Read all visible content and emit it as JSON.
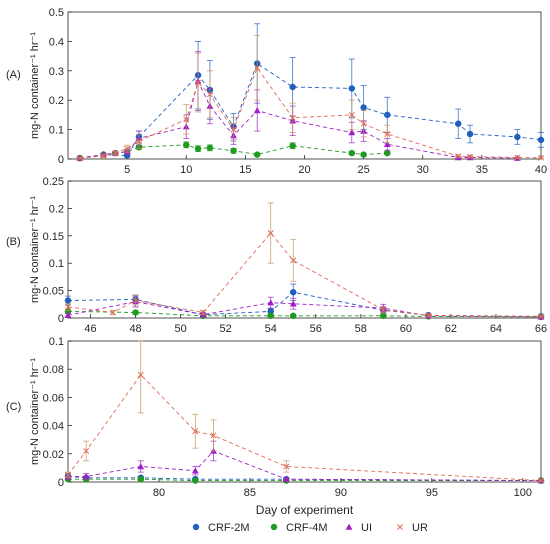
{
  "chart_data": [
    {
      "type": "line",
      "panel_label": "(A)",
      "ylabel": "mg-N container⁻¹ hr⁻¹",
      "xlim": [
        0,
        40
      ],
      "ylim": [
        0,
        0.5
      ],
      "xticks": [
        5,
        10,
        15,
        20,
        25,
        30,
        35,
        40
      ],
      "yticks": [
        0,
        0.1,
        0.2,
        0.3,
        0.4,
        0.5
      ],
      "series": [
        {
          "name": "CRF-2M",
          "x": [
            1,
            3,
            5,
            6,
            11,
            12,
            14,
            16,
            19,
            24,
            25,
            27,
            33,
            34,
            38,
            40
          ],
          "y": [
            0.003,
            0.015,
            0.012,
            0.075,
            0.285,
            0.235,
            0.11,
            0.325,
            0.245,
            0.24,
            0.175,
            0.15,
            0.12,
            0.085,
            0.075,
            0.065
          ],
          "err": [
            0.002,
            0.005,
            0.006,
            0.02,
            0.115,
            0.1,
            0.045,
            0.135,
            0.1,
            0.1,
            0.075,
            0.06,
            0.05,
            0.03,
            0.025,
            0.025
          ]
        },
        {
          "name": "CRF-4M",
          "x": [
            1,
            3,
            4,
            5,
            6,
            10,
            11,
            12,
            14,
            16,
            19,
            24,
            25,
            27
          ],
          "y": [
            0.003,
            0.015,
            0.02,
            0.025,
            0.04,
            0.048,
            0.035,
            0.038,
            0.028,
            0.015,
            0.045,
            0.02,
            0.015,
            0.02
          ],
          "err": [
            0.002,
            0.003,
            0.004,
            0.004,
            0.007,
            0.01,
            0.01,
            0.01,
            0.008,
            0.004,
            0.01,
            0.005,
            0.004,
            0.005
          ]
        },
        {
          "name": "UI",
          "x": [
            1,
            3,
            4,
            5,
            6,
            10,
            11,
            12,
            14,
            16,
            19,
            24,
            25,
            27,
            33,
            34,
            38
          ],
          "y": [
            0.003,
            0.015,
            0.02,
            0.025,
            0.07,
            0.11,
            0.265,
            0.18,
            0.08,
            0.165,
            0.13,
            0.09,
            0.095,
            0.05,
            0.005,
            0.005,
            0.003
          ],
          "err": [
            0.002,
            0.004,
            0.005,
            0.008,
            0.025,
            0.04,
            0.1,
            0.06,
            0.03,
            0.07,
            0.05,
            0.035,
            0.035,
            0.02,
            0.003,
            0.003,
            0.002
          ]
        },
        {
          "name": "UR",
          "x": [
            1,
            3,
            4,
            5,
            6,
            10,
            11,
            12,
            14,
            16,
            19,
            24,
            25,
            27,
            33,
            34,
            38,
            40
          ],
          "y": [
            0.003,
            0.01,
            0.02,
            0.035,
            0.06,
            0.135,
            0.26,
            0.22,
            0.1,
            0.31,
            0.14,
            0.15,
            0.12,
            0.085,
            0.01,
            0.008,
            0.005,
            0.004
          ],
          "err": [
            0.002,
            0.004,
            0.006,
            0.012,
            0.025,
            0.05,
            0.1,
            0.08,
            0.04,
            0.11,
            0.05,
            0.05,
            0.045,
            0.03,
            0.004,
            0.003,
            0.002,
            0.002
          ]
        }
      ]
    },
    {
      "type": "line",
      "panel_label": "(B)",
      "ylabel": "mg-N container⁻¹ hr⁻¹",
      "xlim": [
        45,
        66
      ],
      "ylim": [
        0,
        0.25
      ],
      "xticks": [
        46,
        48,
        50,
        52,
        54,
        56,
        58,
        60,
        62,
        64,
        66
      ],
      "yticks": [
        0,
        0.05,
        0.1,
        0.15,
        0.2,
        0.25
      ],
      "series": [
        {
          "name": "CRF-2M",
          "x": [
            45,
            48,
            51,
            54,
            55,
            59,
            61,
            66
          ],
          "y": [
            0.032,
            0.034,
            0.006,
            0.012,
            0.047,
            0.014,
            0.005,
            0.003
          ],
          "err": [
            0.008,
            0.008,
            0.003,
            0.005,
            0.015,
            0.006,
            0.002,
            0.001
          ]
        },
        {
          "name": "CRF-4M",
          "x": [
            45,
            48,
            51,
            54,
            55,
            59,
            61,
            66
          ],
          "y": [
            0.012,
            0.01,
            0.004,
            0.004,
            0.004,
            0.004,
            0.003,
            0.002
          ],
          "err": [
            0.004,
            0.003,
            0.002,
            0.002,
            0.002,
            0.002,
            0.001,
            0.001
          ]
        },
        {
          "name": "UI",
          "x": [
            45,
            48,
            51,
            54,
            55,
            59,
            61,
            66
          ],
          "y": [
            0.005,
            0.03,
            0.006,
            0.028,
            0.026,
            0.018,
            0.004,
            0.002
          ],
          "err": [
            0.003,
            0.01,
            0.003,
            0.01,
            0.01,
            0.007,
            0.002,
            0.001
          ]
        },
        {
          "name": "UR",
          "x": [
            45,
            47,
            48,
            51,
            54,
            55,
            59,
            61,
            66
          ],
          "y": [
            0.02,
            0.01,
            0.032,
            0.01,
            0.155,
            0.105,
            0.015,
            0.005,
            0.003
          ],
          "err": [
            0.006,
            0.004,
            0.01,
            0.004,
            0.055,
            0.038,
            0.006,
            0.002,
            0.001
          ]
        }
      ]
    },
    {
      "type": "line",
      "panel_label": "(C)",
      "ylabel": "mg-N container⁻¹ hr⁻¹",
      "xlabel": "Day of experiment",
      "xlim": [
        75,
        101
      ],
      "ylim": [
        0,
        0.1
      ],
      "xticks": [
        80,
        85,
        90,
        95,
        100
      ],
      "yticks": [
        0,
        0.02,
        0.04,
        0.06,
        0.08,
        0.1
      ],
      "series": [
        {
          "name": "CRF-2M",
          "x": [
            75,
            76,
            79,
            82,
            87,
            101
          ],
          "y": [
            0.004,
            0.003,
            0.003,
            0.002,
            0.002,
            0.001
          ],
          "err": [
            0.001,
            0.001,
            0.001,
            0.001,
            0.001,
            0.0005
          ]
        },
        {
          "name": "CRF-4M",
          "x": [
            75,
            76,
            79,
            82,
            87,
            101
          ],
          "y": [
            0.002,
            0.002,
            0.002,
            0.001,
            0.001,
            0.001
          ],
          "err": [
            0.001,
            0.001,
            0.001,
            0.0005,
            0.0005,
            0.0005
          ]
        },
        {
          "name": "UI",
          "x": [
            75,
            76,
            79,
            82,
            83,
            87,
            101
          ],
          "y": [
            0.004,
            0.004,
            0.011,
            0.008,
            0.022,
            0.002,
            0.001
          ],
          "err": [
            0.002,
            0.002,
            0.004,
            0.003,
            0.007,
            0.001,
            0.0005
          ]
        },
        {
          "name": "UR",
          "x": [
            75,
            76,
            79,
            82,
            83,
            87,
            101
          ],
          "y": [
            0.005,
            0.022,
            0.076,
            0.036,
            0.033,
            0.011,
            0.001
          ],
          "err": [
            0.002,
            0.007,
            0.027,
            0.012,
            0.011,
            0.004,
            0.0005
          ]
        }
      ]
    }
  ],
  "legend": {
    "position": "bottom",
    "items": [
      {
        "label": "CRF-2M",
        "color": "#1f5fbf",
        "marker": "circle"
      },
      {
        "label": "CRF-4M",
        "color": "#1e9a1e",
        "marker": "circle"
      },
      {
        "label": "UI",
        "color": "#a020c8",
        "marker": "triangle"
      },
      {
        "label": "UR",
        "color": "#e06a55",
        "marker": "cross"
      }
    ]
  },
  "colors": {
    "CRF-2M": "#1f5fbf",
    "CRF-4M": "#1e9a1e",
    "UI": "#a020c8",
    "UR": "#e06a55",
    "UR_errorbar": "#c0925a",
    "axis": "#262626"
  }
}
